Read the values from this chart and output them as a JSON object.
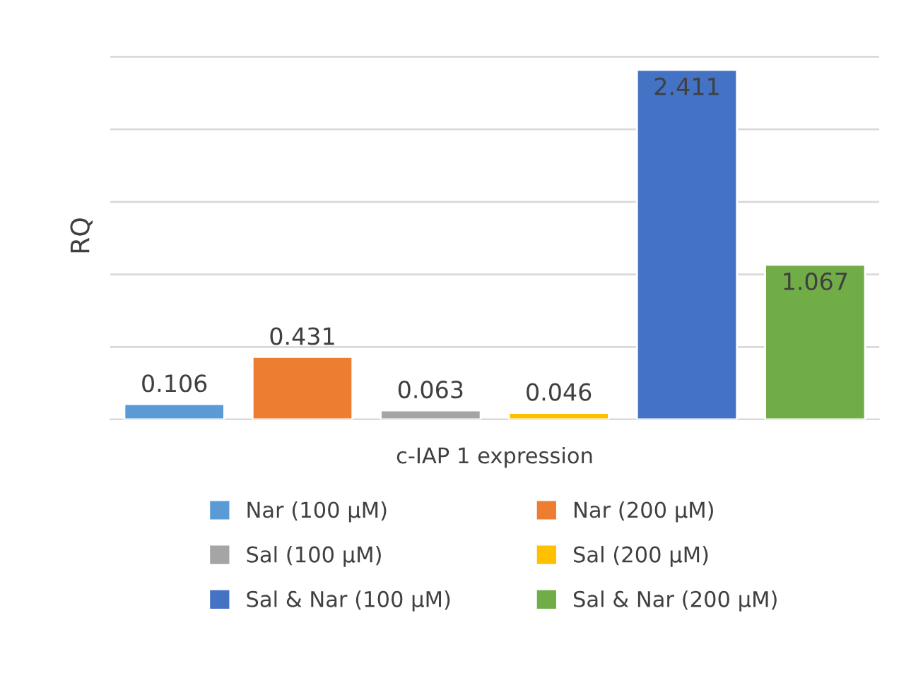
{
  "chart_data": {
    "type": "bar",
    "ylabel": "RQ",
    "xlabel": "c-IAP 1 expression",
    "categories": [
      null,
      null,
      null,
      null,
      null,
      null
    ],
    "stacked": true,
    "series": [
      {
        "name": "Nar (100 µM)",
        "color": "#5b9bd5",
        "values": [
          0.106,
          null,
          null,
          null,
          null,
          null
        ]
      },
      {
        "name": "Nar (200 µM)",
        "color": "#ed7d31",
        "values": [
          null,
          0.431,
          null,
          null,
          null,
          null
        ]
      },
      {
        "name": "Sal (100 µM)",
        "color": "#a5a5a5",
        "values": [
          null,
          null,
          0.063,
          null,
          null,
          null
        ]
      },
      {
        "name": "Sal (200 µM)",
        "color": "#ffc000",
        "values": [
          null,
          null,
          null,
          0.046,
          null,
          null
        ]
      },
      {
        "name": "Sal & Nar (100 µM)",
        "color": "#4472c4",
        "values": [
          null,
          null,
          null,
          null,
          2.411,
          null
        ]
      },
      {
        "name": "Sal & Nar (200 µM)",
        "color": "#70ad47",
        "values": [
          null,
          null,
          null,
          null,
          null,
          1.067
        ]
      }
    ],
    "grid": "y",
    "data_labels": true,
    "legend": "bottom",
    "tick_labels": false
  }
}
